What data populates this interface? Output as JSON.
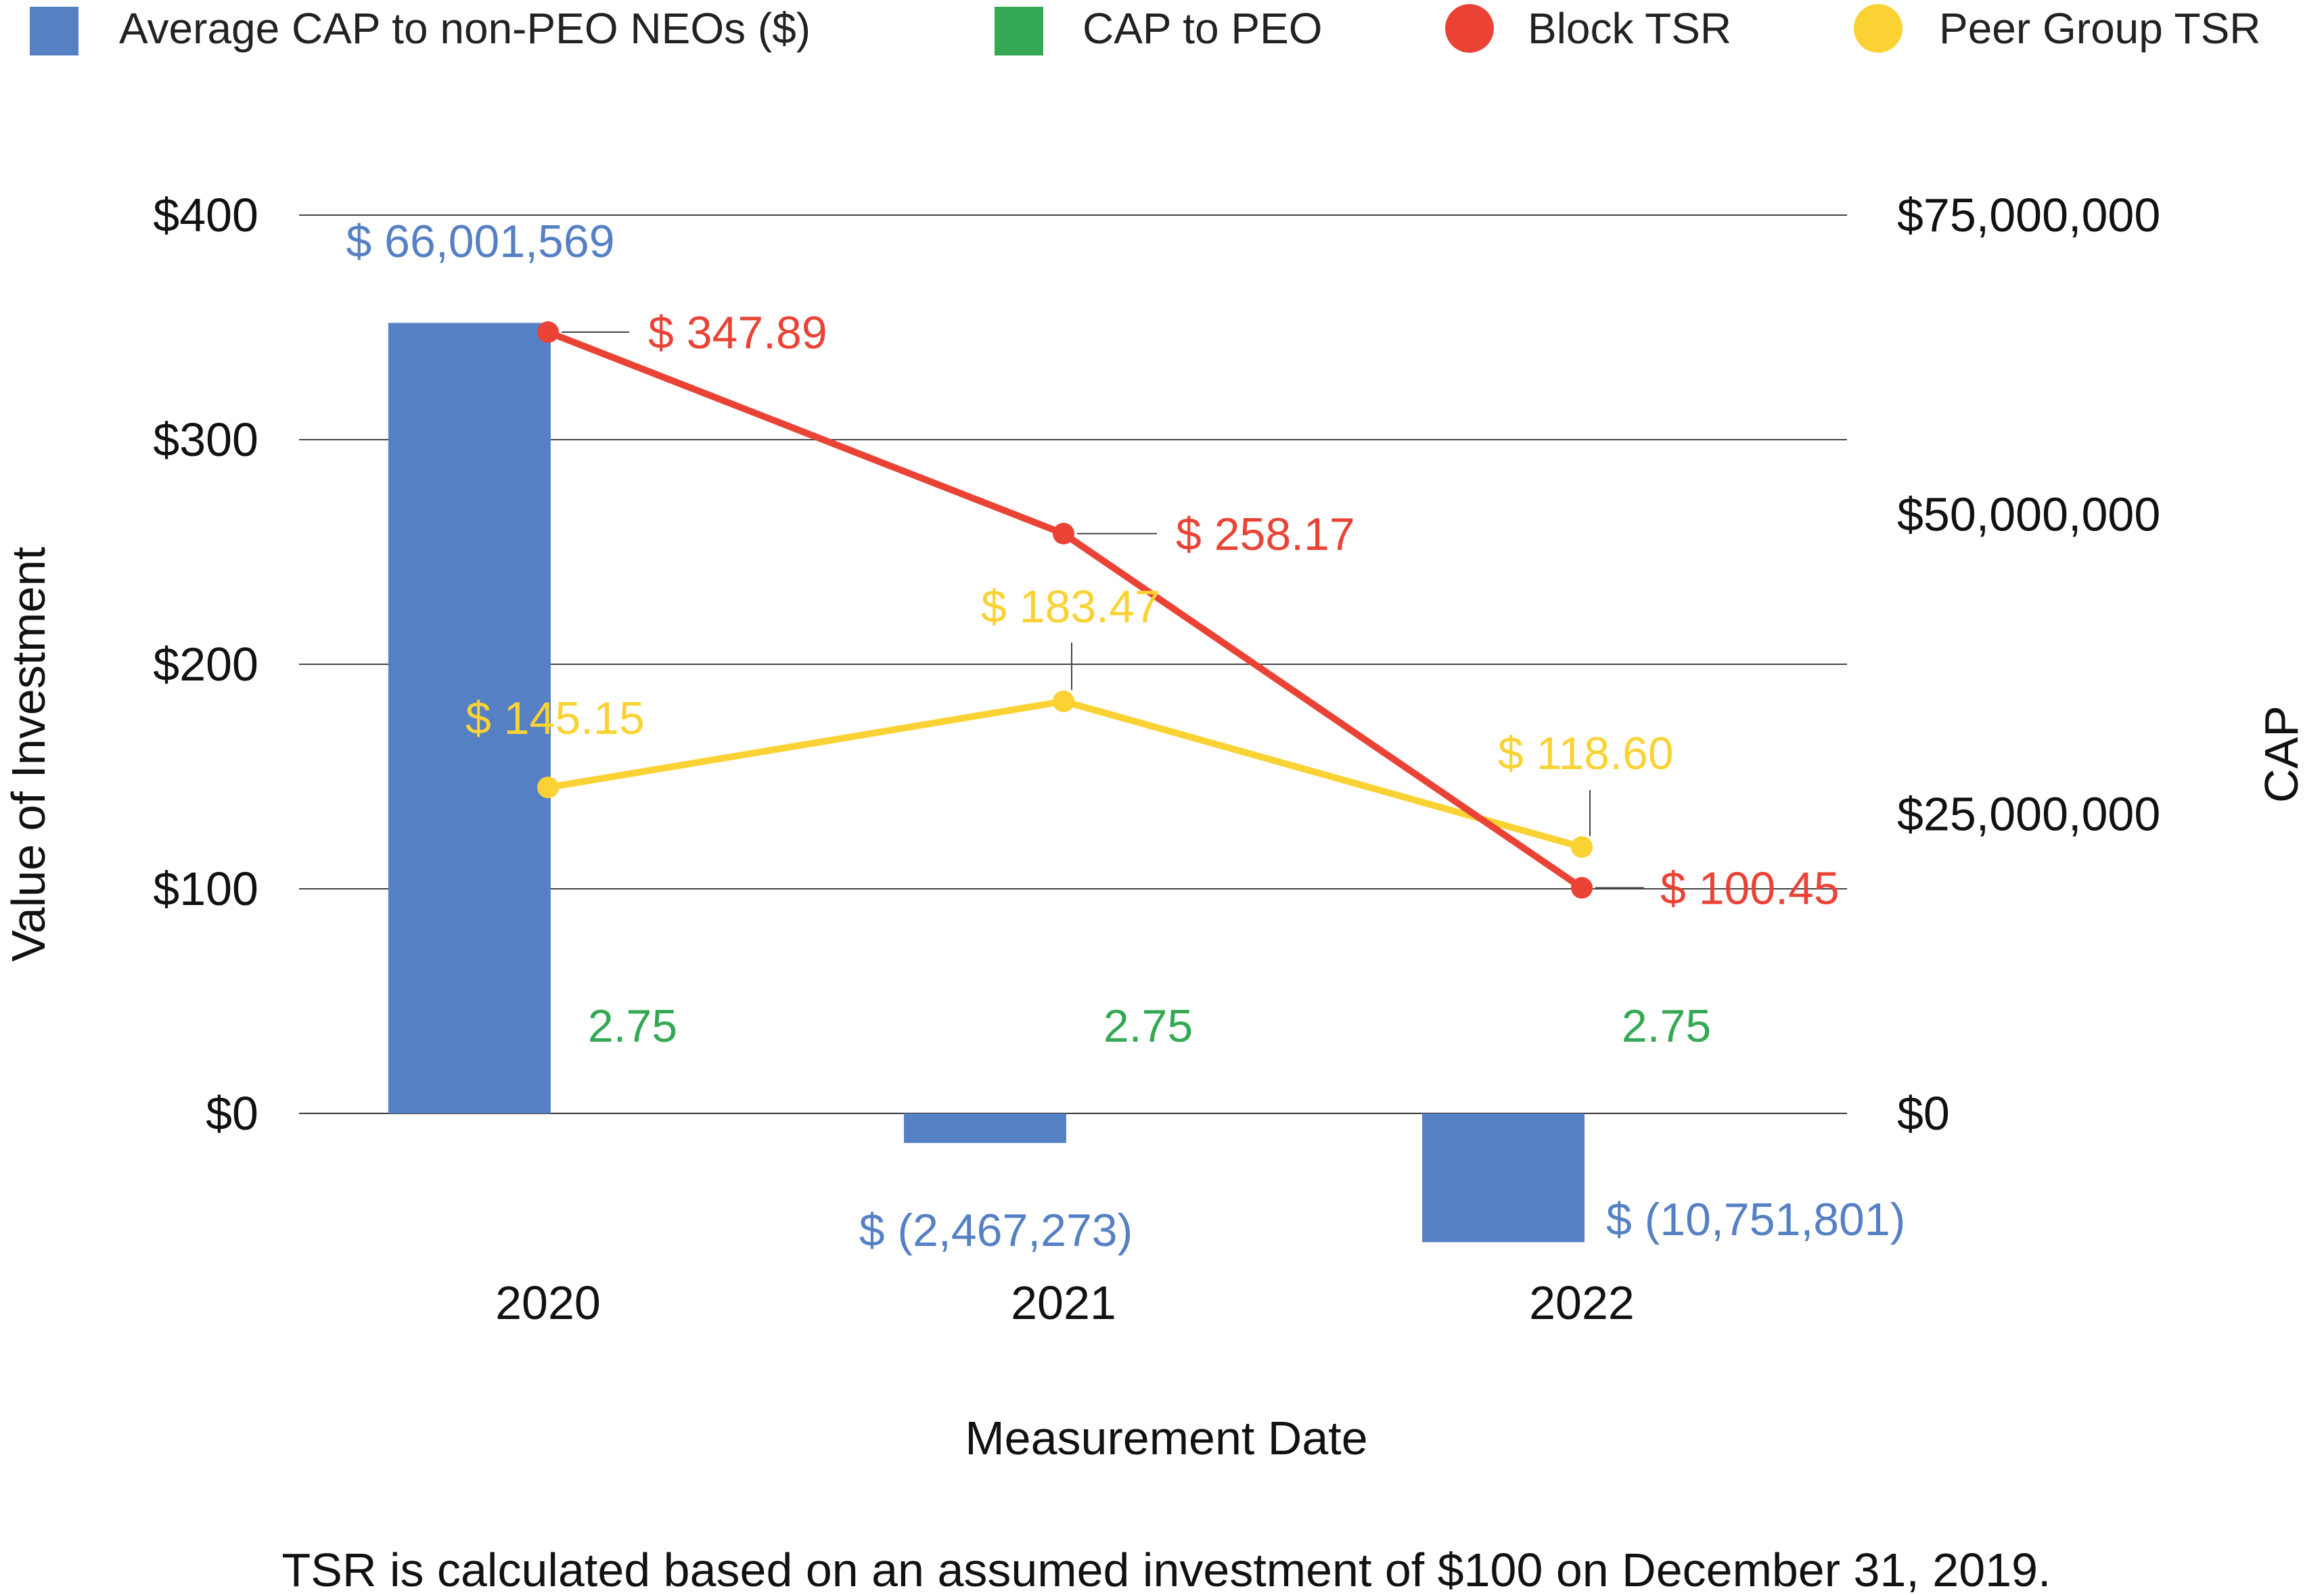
{
  "chart_data": {
    "type": "bar+line",
    "x": [
      "2020",
      "2021",
      "2022"
    ],
    "xlabel": "Measurement Date",
    "ylabel_left": "Value of Investment",
    "ylabel_right": "CAP",
    "ylim_left": [
      0,
      400
    ],
    "ylim_right": [
      0,
      75000000
    ],
    "yticks_left": [
      "$0",
      "$100",
      "$200",
      "$300",
      "$400"
    ],
    "yticks_right": [
      "$0",
      "$25,000,000",
      "$50,000,000",
      "$75,000,000"
    ],
    "grid": true,
    "legend_position": "top",
    "series": [
      {
        "name": "Average CAP to non-PEO NEOs ($)",
        "kind": "bar",
        "axis": "right",
        "color": "#5580C4",
        "values": [
          66001569,
          -2467273,
          -10751801
        ],
        "labels": [
          "$ 66,001,569",
          "$ (2,467,273)",
          "$ (10,751,801)"
        ]
      },
      {
        "name": "CAP to PEO",
        "kind": "bar",
        "axis": "right",
        "color": "#34A853",
        "values": [
          2.75,
          2.75,
          2.75
        ],
        "labels": [
          "2.75",
          "2.75",
          "2.75"
        ]
      },
      {
        "name": "Block TSR",
        "kind": "line",
        "axis": "left",
        "color": "#EA4335",
        "values": [
          347.89,
          258.17,
          100.45
        ],
        "labels": [
          "$ 347.89",
          "$ 258.17",
          "$ 100.45"
        ]
      },
      {
        "name": "Peer Group TSR",
        "kind": "line",
        "axis": "left",
        "color": "#FBD233",
        "values": [
          145.15,
          183.47,
          118.6
        ],
        "labels": [
          "$ 145.15",
          "$ 183.47",
          "$ 118.60"
        ]
      }
    ]
  },
  "footnote": "TSR is calculated based on an assumed investment of $100 on December 31, 2019."
}
